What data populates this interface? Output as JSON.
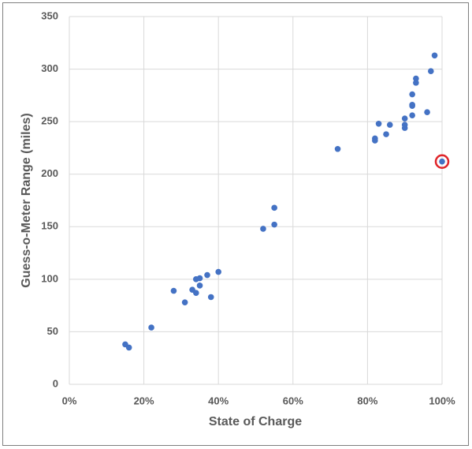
{
  "chart_data": {
    "type": "scatter",
    "x_label": "State of Charge",
    "y_label": "Guess-o-Meter Range (miles)",
    "x": [
      15,
      16,
      22,
      28,
      31,
      33,
      34,
      34,
      35,
      35,
      37,
      38,
      40,
      52,
      55,
      55,
      72,
      82,
      82,
      83,
      85,
      86,
      90,
      90,
      90,
      92,
      92,
      92,
      92,
      93,
      93,
      96,
      97,
      98,
      100
    ],
    "series": [
      {
        "name": "Range",
        "color": "#4472c4",
        "values": [
          38,
          35,
          54,
          89,
          78,
          90,
          100,
          87,
          101,
          94,
          104,
          83,
          107,
          148,
          152,
          168,
          224,
          234,
          232,
          248,
          238,
          247,
          253,
          247,
          244,
          256,
          266,
          265,
          276,
          291,
          287,
          259,
          298,
          313,
          212
        ]
      }
    ],
    "highlight": [
      34
    ],
    "highlight_color": "#e0262b",
    "xlim": [
      0,
      100
    ],
    "xticks": [
      {
        "value": 0,
        "label": "0%"
      },
      {
        "value": 20,
        "label": "20%"
      },
      {
        "value": 40,
        "label": "40%"
      },
      {
        "value": 60,
        "label": "60%"
      },
      {
        "value": 80,
        "label": "80%"
      },
      {
        "value": 100,
        "label": "100%"
      }
    ],
    "ylim": [
      0,
      350
    ],
    "yticks": [
      0,
      50,
      100,
      150,
      200,
      250,
      300,
      350
    ],
    "grid": true
  }
}
